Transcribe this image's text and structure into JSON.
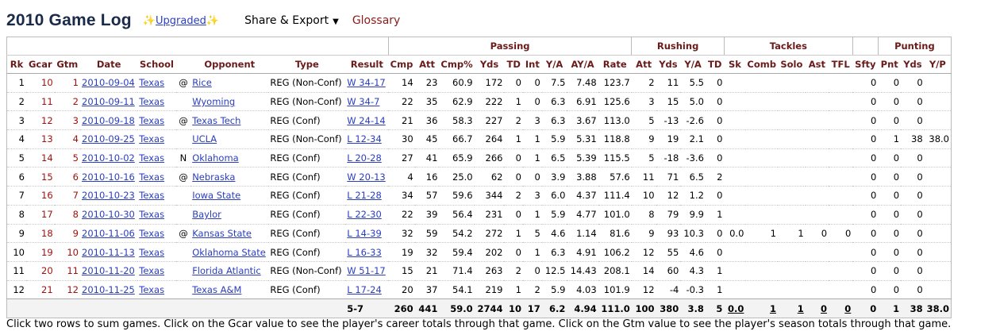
{
  "title": "2010 Game Log",
  "upgraded_label": "Upgraded",
  "share_label": "Share & Export",
  "glossary_label": "Glossary",
  "groups": {
    "passing": "Passing",
    "rushing": "Rushing",
    "tackles": "Tackles",
    "punting": "Punting"
  },
  "columns": [
    "Rk",
    "Gcar",
    "Gtm",
    "Date",
    "School",
    "",
    "Opponent",
    "Type",
    "Result",
    "Cmp",
    "Att",
    "Cmp%",
    "Yds",
    "TD",
    "Int",
    "Y/A",
    "AY/A",
    "Rate",
    "Att",
    "Yds",
    "Y/A",
    "TD",
    "Sk",
    "Comb",
    "Solo",
    "Ast",
    "TFL",
    "Sfty",
    "Pnt",
    "Yds",
    "Y/P"
  ],
  "rows": [
    [
      "1",
      "10",
      "1",
      "2010-09-04",
      "Texas",
      "@",
      "Rice",
      "REG (Non-Conf)",
      "W 34-17",
      "14",
      "23",
      "60.9",
      "172",
      "0",
      "0",
      "7.5",
      "7.48",
      "123.7",
      "2",
      "11",
      "5.5",
      "0",
      "",
      "",
      "",
      "",
      "",
      "0",
      "0",
      "0",
      ""
    ],
    [
      "2",
      "11",
      "2",
      "2010-09-11",
      "Texas",
      "",
      "Wyoming",
      "REG (Non-Conf)",
      "W 34-7",
      "22",
      "35",
      "62.9",
      "222",
      "1",
      "0",
      "6.3",
      "6.91",
      "125.6",
      "3",
      "15",
      "5.0",
      "0",
      "",
      "",
      "",
      "",
      "",
      "0",
      "0",
      "0",
      ""
    ],
    [
      "3",
      "12",
      "3",
      "2010-09-18",
      "Texas",
      "@",
      "Texas Tech",
      "REG (Conf)",
      "W 24-14",
      "21",
      "36",
      "58.3",
      "227",
      "2",
      "3",
      "6.3",
      "3.67",
      "113.0",
      "5",
      "-13",
      "-2.6",
      "0",
      "",
      "",
      "",
      "",
      "",
      "0",
      "0",
      "0",
      ""
    ],
    [
      "4",
      "13",
      "4",
      "2010-09-25",
      "Texas",
      "",
      "UCLA",
      "REG (Non-Conf)",
      "L 12-34",
      "30",
      "45",
      "66.7",
      "264",
      "1",
      "1",
      "5.9",
      "5.31",
      "118.8",
      "9",
      "19",
      "2.1",
      "0",
      "",
      "",
      "",
      "",
      "",
      "0",
      "1",
      "38",
      "38.0"
    ],
    [
      "5",
      "14",
      "5",
      "2010-10-02",
      "Texas",
      "N",
      "Oklahoma",
      "REG (Conf)",
      "L 20-28",
      "27",
      "41",
      "65.9",
      "266",
      "0",
      "1",
      "6.5",
      "5.39",
      "115.5",
      "5",
      "-18",
      "-3.6",
      "0",
      "",
      "",
      "",
      "",
      "",
      "0",
      "0",
      "0",
      ""
    ],
    [
      "6",
      "15",
      "6",
      "2010-10-16",
      "Texas",
      "@",
      "Nebraska",
      "REG (Conf)",
      "W 20-13",
      "4",
      "16",
      "25.0",
      "62",
      "0",
      "0",
      "3.9",
      "3.88",
      "57.6",
      "11",
      "71",
      "6.5",
      "2",
      "",
      "",
      "",
      "",
      "",
      "0",
      "0",
      "0",
      ""
    ],
    [
      "7",
      "16",
      "7",
      "2010-10-23",
      "Texas",
      "",
      "Iowa State",
      "REG (Conf)",
      "L 21-28",
      "34",
      "57",
      "59.6",
      "344",
      "2",
      "3",
      "6.0",
      "4.37",
      "111.4",
      "10",
      "12",
      "1.2",
      "0",
      "",
      "",
      "",
      "",
      "",
      "0",
      "0",
      "0",
      ""
    ],
    [
      "8",
      "17",
      "8",
      "2010-10-30",
      "Texas",
      "",
      "Baylor",
      "REG (Conf)",
      "L 22-30",
      "22",
      "39",
      "56.4",
      "231",
      "0",
      "1",
      "5.9",
      "4.77",
      "101.0",
      "8",
      "79",
      "9.9",
      "1",
      "",
      "",
      "",
      "",
      "",
      "0",
      "0",
      "0",
      ""
    ],
    [
      "9",
      "18",
      "9",
      "2010-11-06",
      "Texas",
      "@",
      "Kansas State",
      "REG (Conf)",
      "L 14-39",
      "32",
      "59",
      "54.2",
      "272",
      "1",
      "5",
      "4.6",
      "1.14",
      "81.6",
      "9",
      "93",
      "10.3",
      "0",
      "0.0",
      "1",
      "1",
      "0",
      "0",
      "0",
      "0",
      "0",
      ""
    ],
    [
      "10",
      "19",
      "10",
      "2010-11-13",
      "Texas",
      "",
      "Oklahoma State",
      "REG (Conf)",
      "L 16-33",
      "19",
      "32",
      "59.4",
      "202",
      "0",
      "1",
      "6.3",
      "4.91",
      "106.2",
      "12",
      "55",
      "4.6",
      "0",
      "",
      "",
      "",
      "",
      "",
      "0",
      "0",
      "0",
      ""
    ],
    [
      "11",
      "20",
      "11",
      "2010-11-20",
      "Texas",
      "",
      "Florida Atlantic",
      "REG (Non-Conf)",
      "W 51-17",
      "15",
      "21",
      "71.4",
      "263",
      "2",
      "0",
      "12.5",
      "14.43",
      "208.1",
      "14",
      "60",
      "4.3",
      "1",
      "",
      "",
      "",
      "",
      "",
      "0",
      "0",
      "0",
      ""
    ],
    [
      "12",
      "21",
      "12",
      "2010-11-25",
      "Texas",
      "",
      "Texas A&M",
      "REG (Conf)",
      "L 17-24",
      "20",
      "37",
      "54.1",
      "219",
      "1",
      "2",
      "5.9",
      "4.03",
      "101.9",
      "12",
      "-4",
      "-0.3",
      "1",
      "",
      "",
      "",
      "",
      "",
      "0",
      "0",
      "0",
      ""
    ]
  ],
  "totals": [
    "",
    "",
    "",
    "",
    "",
    "",
    "",
    "",
    "5-7",
    "260",
    "441",
    "59.0",
    "2744",
    "10",
    "17",
    "6.2",
    "4.94",
    "111.0",
    "100",
    "380",
    "3.8",
    "5",
    "0.0",
    "1",
    "1",
    "0",
    "0",
    "0",
    "1",
    "38",
    "38.0"
  ],
  "note": "Click two rows to sum games. Click on the Gcar value to see the player's career totals through that game. Click on the Gtm value to see the player's season totals through that game."
}
